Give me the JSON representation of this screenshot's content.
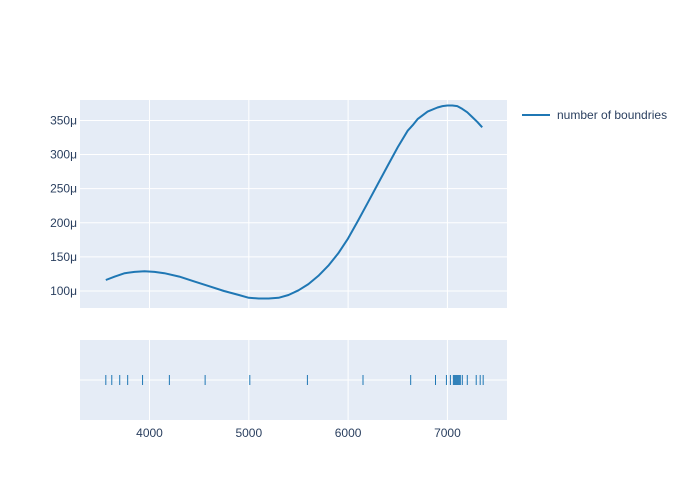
{
  "chart_data": {
    "type": "line",
    "title": "",
    "xlabel": "",
    "ylabel": "",
    "legend": {
      "position": "top-right"
    },
    "grid": true,
    "colors": {
      "plot_bg": "#e5ecf6",
      "line": "#1f77b4",
      "grid": "#ffffff",
      "text": "#2a3f5f"
    },
    "xlim": [
      3300,
      7600
    ],
    "ylim": [
      7.5e-05,
      0.00038
    ],
    "x_ticks": [
      4000,
      5000,
      6000,
      7000
    ],
    "x_tick_labels": [
      "4000",
      "5000",
      "6000",
      "7000"
    ],
    "y_ticks": [
      0.0001,
      0.00015,
      0.0002,
      0.00025,
      0.0003,
      0.00035
    ],
    "y_tick_labels": [
      "100μ",
      "150μ",
      "200μ",
      "250μ",
      "300μ",
      "350μ"
    ],
    "series": [
      {
        "name": "number of boundries",
        "x": [
          3560,
          3650,
          3750,
          3850,
          3950,
          4050,
          4150,
          4300,
          4450,
          4600,
          4750,
          4900,
          5000,
          5100,
          5200,
          5300,
          5400,
          5500,
          5600,
          5700,
          5800,
          5900,
          6000,
          6100,
          6200,
          6300,
          6400,
          6500,
          6600,
          6650,
          6700,
          6800,
          6900,
          6950,
          7000,
          7050,
          7100,
          7150,
          7200,
          7250,
          7300,
          7350
        ],
        "y": [
          0.000116,
          0.000121,
          0.000126,
          0.000128,
          0.000129,
          0.000128,
          0.000126,
          0.000121,
          0.000114,
          0.000107,
          0.0001,
          9.4e-05,
          9e-05,
          8.9e-05,
          8.9e-05,
          9e-05,
          9.4e-05,
          0.000101,
          0.00011,
          0.000122,
          0.000137,
          0.000155,
          0.000177,
          0.000203,
          0.00023,
          0.000257,
          0.000284,
          0.000311,
          0.000335,
          0.000343,
          0.000352,
          0.000363,
          0.000369,
          0.000371,
          0.000372,
          0.000372,
          0.000371,
          0.000367,
          0.000362,
          0.000355,
          0.000348,
          0.00034
        ]
      }
    ],
    "rug": {
      "x": [
        3560,
        3620,
        3700,
        3780,
        3930,
        4200,
        4560,
        5010,
        5590,
        6150,
        6630,
        6880,
        6990,
        7030,
        7060,
        7070,
        7080,
        7090,
        7100,
        7110,
        7120,
        7130,
        7150,
        7200,
        7290,
        7330,
        7360
      ]
    }
  }
}
